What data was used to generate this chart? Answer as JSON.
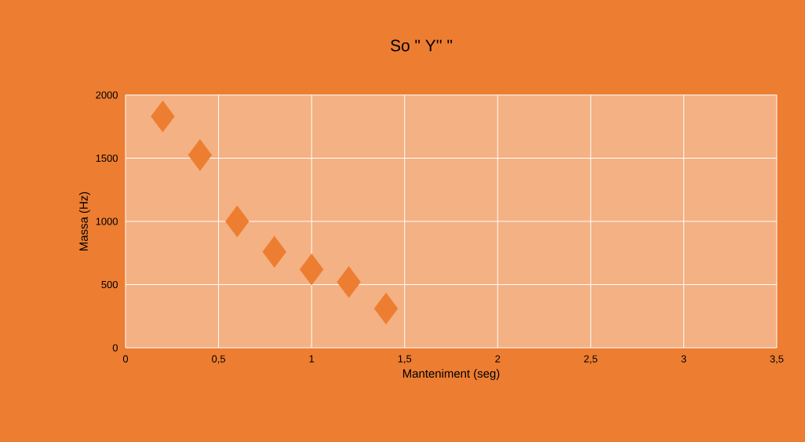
{
  "chart_data": {
    "type": "scatter",
    "title": "So \" Y'' \"",
    "xlabel": "Manteniment (seg)",
    "ylabel": "Massa (Hz)",
    "x": [
      0.2,
      0.4,
      0.6,
      0.8,
      1.0,
      1.2,
      1.4
    ],
    "series": [
      {
        "color": "#ed7d31",
        "values": [
          1830,
          1525,
          1000,
          760,
          620,
          520,
          310
        ]
      }
    ],
    "xlim": [
      0,
      3.5
    ],
    "ylim": [
      0,
      2000
    ],
    "xticks": [
      {
        "value": 0,
        "label": "0"
      },
      {
        "value": 0.5,
        "label": "0,5"
      },
      {
        "value": 1,
        "label": "1"
      },
      {
        "value": 1.5,
        "label": "1,5"
      },
      {
        "value": 2,
        "label": "2"
      },
      {
        "value": 2.5,
        "label": "2,5"
      },
      {
        "value": 3,
        "label": "3"
      },
      {
        "value": 3.5,
        "label": "3,5"
      }
    ],
    "yticks": [
      0,
      500,
      1000,
      1500,
      2000
    ],
    "grid": true,
    "marker": "diamond"
  }
}
